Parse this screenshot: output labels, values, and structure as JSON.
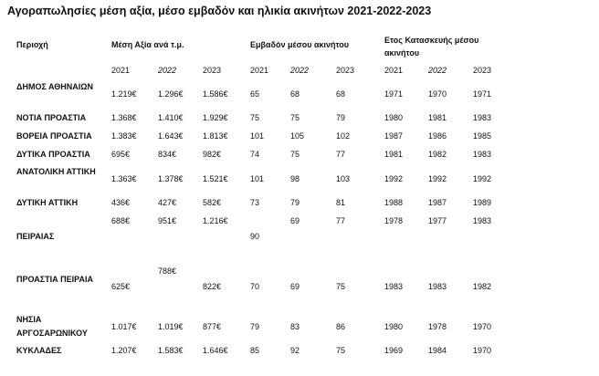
{
  "title": "Αγοραπωλησίες μέση αξία, μέσο εμβαδόν και ηλικία ακινήτων 2021-2022-2023",
  "table": {
    "header": {
      "region": "Περιοχή",
      "groups": [
        "Μέση Αξία ανά τ.μ.",
        "Εμβαδόν μέσου ακινήτου",
        "Ετος Κατασκευής μέσου ακινήτου"
      ],
      "years": [
        "2021",
        "2022",
        "2023",
        "2021",
        "2022",
        "2023",
        "2021",
        "2022",
        "2023"
      ]
    },
    "rows": [
      {
        "label": "ΔΗΜΟΣ ΑΘΗΝΑΙΩΝ",
        "cells": [
          "1.219€",
          "1.296€",
          "1.586€",
          "65",
          "68",
          "68",
          "1971",
          "1970",
          "1971"
        ]
      },
      {
        "label": "ΝΟΤΙΑ ΠΡΟΑΣΤΙΑ",
        "cells": [
          "1.368€",
          "1.410€",
          "1.929€",
          "75",
          "75",
          "79",
          "1980",
          "1981",
          "1983"
        ]
      },
      {
        "label": "ΒΟΡΕΙΑ ΠΡΟΑΣΤΙΑ",
        "cells": [
          "1.383€",
          "1.643€",
          "1.813€",
          "101",
          "105",
          "102",
          "1987",
          "1986",
          "1985"
        ]
      },
      {
        "label": "ΔΥΤΙΚΑ ΠΡΟΑΣΤΙΑ",
        "cells": [
          "695€",
          "834€",
          "982€",
          "74",
          "75",
          "77",
          "1981",
          "1982",
          "1983"
        ]
      },
      {
        "label": "ΑΝΑΤΟΛΙΚΗ ΑΤΤΙΚΗ",
        "cells": [
          "1.363€",
          "1.378€",
          "1.521€",
          "101",
          "98",
          "103",
          "1992",
          "1992",
          "1992"
        ]
      },
      {
        "label": "ΔΥΤΙΚΗ ΑΤΤΙΚΗ",
        "cells": [
          "436€",
          "427€",
          "582€",
          "73",
          "79",
          "81",
          "1988",
          "1987",
          "1989"
        ]
      },
      {
        "label": null,
        "cells": [
          "688€",
          "951€",
          "1.216€",
          null,
          "69",
          "77",
          "1978",
          "1977",
          "1983"
        ]
      },
      {
        "label": "ΠΕΙΡΑΙΑΣ",
        "cells": [
          null,
          null,
          null,
          "90",
          null,
          null,
          null,
          null,
          null
        ]
      },
      {
        "label": null,
        "cells": [
          null,
          "788€",
          null,
          null,
          null,
          null,
          null,
          null,
          null
        ]
      },
      {
        "label": "ΠΡΟΑΣΤΙΑ ΠΕΙΡΑΙΑ",
        "cells": [
          "625€",
          null,
          "822€",
          "70",
          "69",
          "75",
          "1983",
          "1983",
          "1982"
        ]
      },
      {
        "label": "ΝΗΣΙΑ ΑΡΓΟΣΑΡΩΝΙΚΟΥ",
        "cells": [
          "1.017€",
          "1.019€",
          "877€",
          "79",
          "83",
          "86",
          "1980",
          "1978",
          "1970"
        ]
      },
      {
        "label": "ΚΥΚΛΑΔΕΣ",
        "cells": [
          "1.207€",
          "1.583€",
          "1.646€",
          "85",
          "92",
          "75",
          "1969",
          "1984",
          "1970"
        ]
      }
    ]
  }
}
